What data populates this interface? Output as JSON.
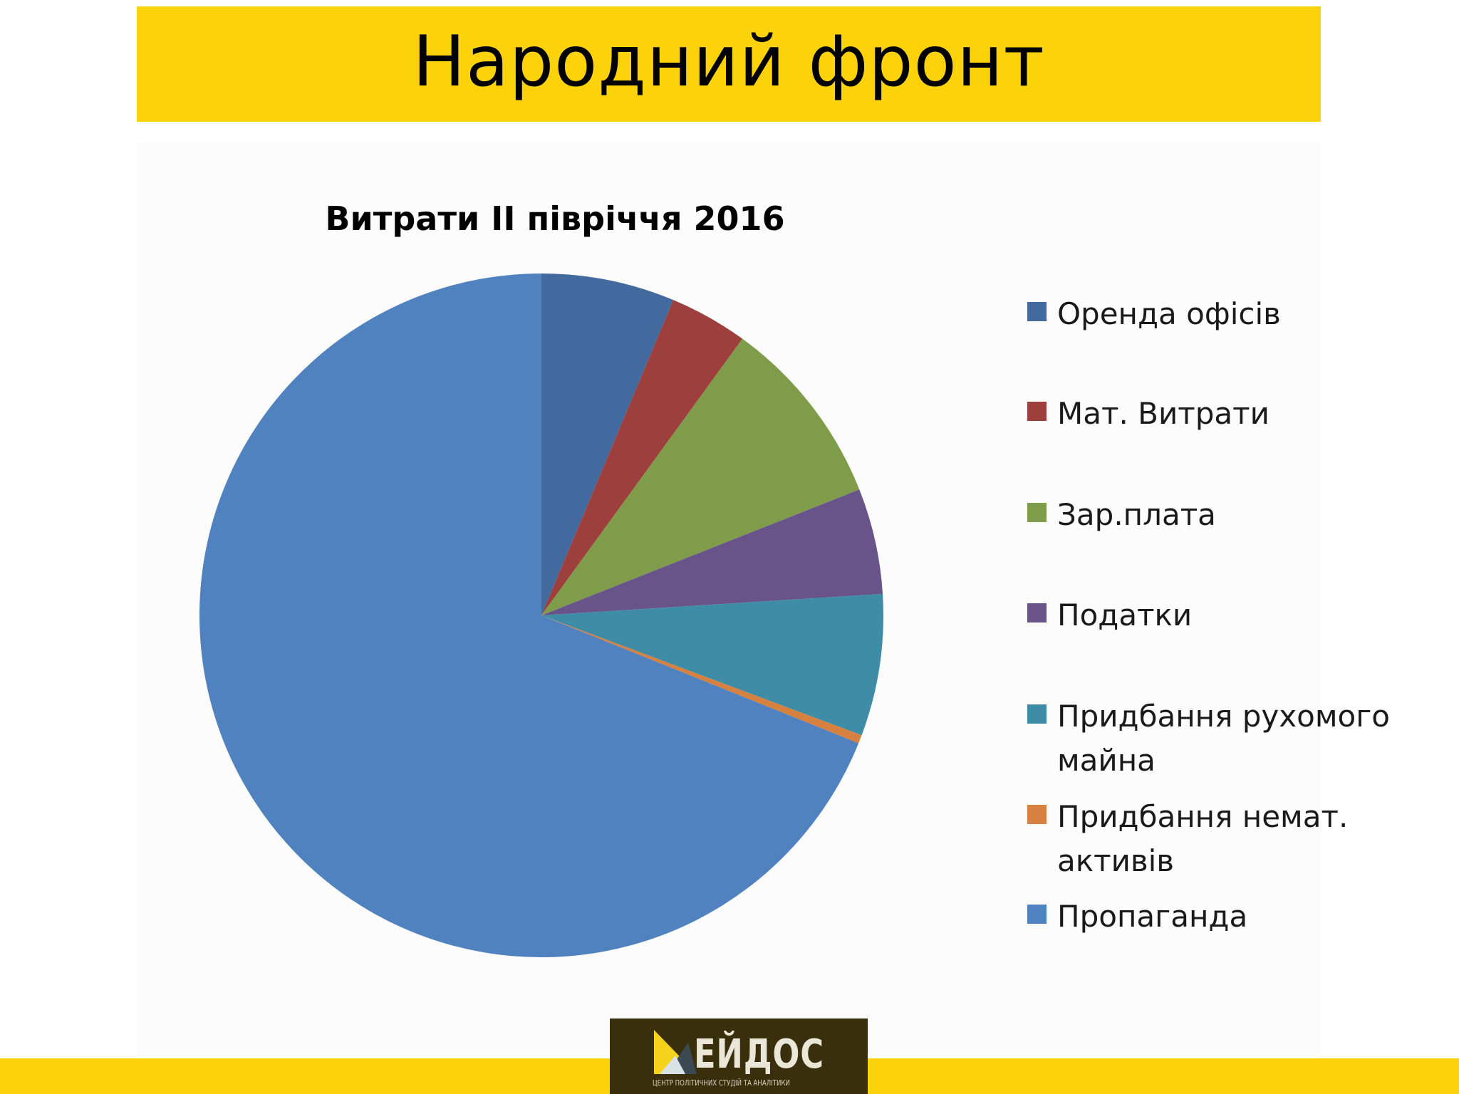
{
  "slide": {
    "title": "Народний фронт"
  },
  "chart_data": {
    "type": "pie",
    "title": "Витрати ІІ півріччя 2016",
    "legend_position": "right",
    "categories": [
      "Оренда офісів",
      "Мат. Витрати",
      "Зар.плата",
      "Податки",
      "Придбання рухомого майна",
      "Придбання немат. активів",
      "Пропаганда"
    ],
    "legend_lines": [
      [
        "Оренда офісів"
      ],
      [
        "Мат. Витрати"
      ],
      [
        "Зар.плата"
      ],
      [
        "Податки"
      ],
      [
        "Придбання рухомого",
        "майна"
      ],
      [
        "Придбання немат.",
        "активів"
      ],
      [
        "Пропаганда"
      ]
    ],
    "values_percent": [
      6.3,
      3.7,
      9.0,
      5.0,
      6.7,
      0.4,
      68.9
    ],
    "colors": [
      "#426a9e",
      "#9d403d",
      "#7f9c4b",
      "#69548a",
      "#3e8ca5",
      "#d6813f",
      "#5182c0"
    ]
  },
  "logo": {
    "name": "ЕЙДОС",
    "subtitle": "ЦЕНТР ПОЛІТИЧНИХ СТУДІЙ ТА АНАЛІТИКИ"
  }
}
